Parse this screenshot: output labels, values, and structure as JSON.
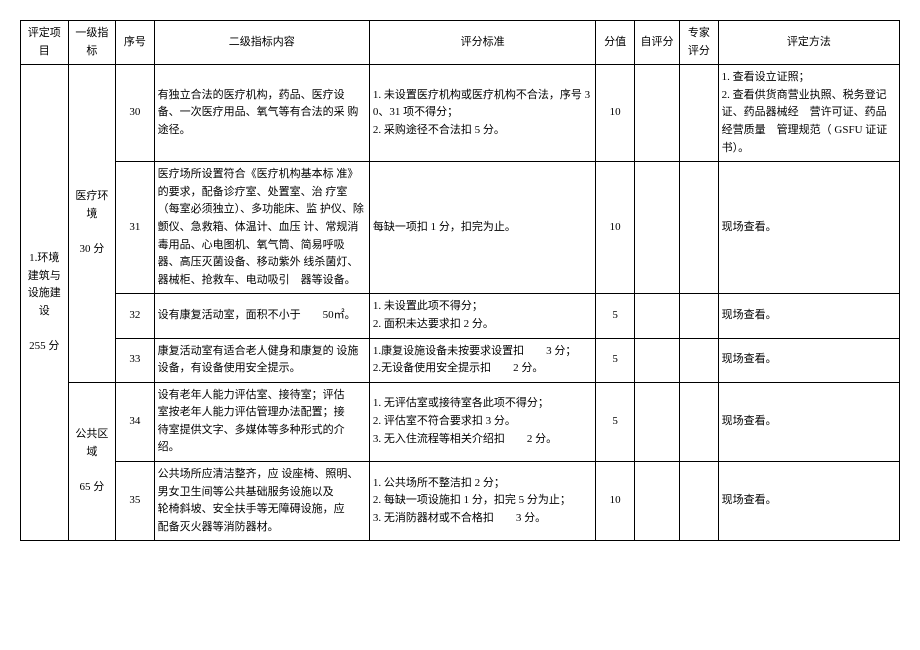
{
  "headers": {
    "project": "评定项目",
    "indicator": "一级指标",
    "num": "序号",
    "content": "二级指标内容",
    "criteria": "评分标准",
    "score": "分值",
    "self": "自评分",
    "expert": "专家评分",
    "method": "评定方法"
  },
  "project": {
    "title": "1.环境建筑与设施建设",
    "points": "255 分"
  },
  "indicators": {
    "medical": {
      "title": "医疗环境",
      "points": "30 分"
    },
    "public": {
      "title": "公共区域",
      "points": "65 分"
    }
  },
  "rows": {
    "r30": {
      "num": "30",
      "content": "有独立合法的医疗机构，药品、医疗设　备、一次医疗用品、氧气等有合法的采 购途径。",
      "criteria": "1. 未设置医疗机构或医疗机构不合法，序号 30、31 项不得分；\n2. 采购途径不合法扣 5 分。",
      "score": "10",
      "method": "1. 查看设立证照；\n2. 查看供货商营业执照、税务登记证、药品器械经　营许可证、药品经营质量　管理规范（ GSFU 证证书）。"
    },
    "r31": {
      "num": "31",
      "content": "医疗场所设置符合《医疗机构基本标 准》的要求，配备诊疗室、处置室、治 疗室（每室必须独立）、多功能床、监 护仪、除颤仪、急救箱、体温计、血压 计、常规消毒用品、心电图机、氧气筒、简易呼吸器、高压灭菌设备、移动紫外 线杀菌灯、器械柜、抢救车、电动吸引　器等设备。",
      "criteria": "每缺一项扣 1 分，扣完为止。",
      "score": "10",
      "method": "现场查看。"
    },
    "r32": {
      "num": "32",
      "content": "设有康复活动室，面积不小于　　50㎡。",
      "criteria": "1. 未设置此项不得分；\n2. 面积未达要求扣 2 分。",
      "score": "5",
      "method": "现场查看。"
    },
    "r33": {
      "num": "33",
      "content": "康复活动室有适合老人健身和康复的 设施设备，有设备使用安全提示。",
      "criteria": "1.康复设施设备未按要求设置扣　　3 分；\n2.无设备使用安全提示扣　　2 分。",
      "score": "5",
      "method": "现场查看。"
    },
    "r34": {
      "num": "34",
      "content": "设有老年人能力评估室、接待室；评估　室按老年人能力评估管理办法配置；接　待室提供文字、多媒体等多种形式的介 绍。",
      "criteria": "1. 无评估室或接待室各此项不得分；\n2. 评估室不符合要求扣 3 分。\n3. 无入住流程等相关介绍扣　　2 分。",
      "score": "5",
      "method": "现场查看。"
    },
    "r35": {
      "num": "35",
      "content": "公共场所应清洁整齐，应 设座椅、照明、男女卫生间等公共基础服务设施以及　　轮椅斜坡、安全扶手等无障碍设施，应　配备灭火器等消防器材。",
      "criteria": "1. 公共场所不整洁扣 2 分；\n2. 每缺一项设施扣 1 分，扣完 5 分为止；\n3. 无消防器材或不合格扣　　3 分。",
      "score": "10",
      "method": "现场查看。"
    }
  }
}
